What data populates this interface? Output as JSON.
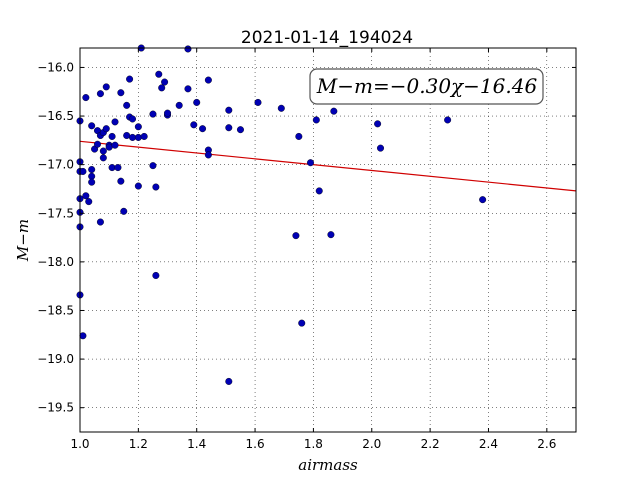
{
  "chart_data": {
    "type": "scatter",
    "title": "2021-01-14_194024",
    "xlabel": "airmass",
    "ylabel": "M−m",
    "xlim": [
      1.0,
      2.7
    ],
    "ylim": [
      -19.75,
      -15.8
    ],
    "y_inverted": true,
    "grid": true,
    "xticks": [
      "1.0",
      "1.2",
      "1.4",
      "1.6",
      "1.8",
      "2.0",
      "2.2",
      "2.4",
      "2.6"
    ],
    "xtick_values": [
      1.0,
      1.2,
      1.4,
      1.6,
      1.8,
      2.0,
      2.2,
      2.4,
      2.6
    ],
    "yticks": [
      "−16.0",
      "−16.5",
      "−17.0",
      "−17.5",
      "−18.0",
      "−18.5",
      "−19.0",
      "−19.5"
    ],
    "ytick_values": [
      -16.0,
      -16.5,
      -17.0,
      -17.5,
      -18.0,
      -18.5,
      -19.0,
      -19.5
    ],
    "annotation": "M−m=−0.30χ−16.46",
    "fit": {
      "slope": -0.3,
      "intercept": -16.46,
      "color": "#d00000"
    },
    "point_color": "#0000b4",
    "points": [
      [
        1.0,
        -16.55
      ],
      [
        1.0,
        -16.97
      ],
      [
        1.0,
        -17.07
      ],
      [
        1.0,
        -17.35
      ],
      [
        1.0,
        -17.49
      ],
      [
        1.0,
        -17.64
      ],
      [
        1.0,
        -18.34
      ],
      [
        1.01,
        -18.76
      ],
      [
        1.01,
        -17.07
      ],
      [
        1.02,
        -16.31
      ],
      [
        1.02,
        -17.32
      ],
      [
        1.03,
        -17.38
      ],
      [
        1.04,
        -17.05
      ],
      [
        1.04,
        -17.12
      ],
      [
        1.04,
        -17.18
      ],
      [
        1.04,
        -16.6
      ],
      [
        1.05,
        -16.84
      ],
      [
        1.06,
        -16.65
      ],
      [
        1.06,
        -16.79
      ],
      [
        1.07,
        -16.27
      ],
      [
        1.07,
        -17.59
      ],
      [
        1.07,
        -16.7
      ],
      [
        1.08,
        -16.67
      ],
      [
        1.08,
        -16.93
      ],
      [
        1.08,
        -16.86
      ],
      [
        1.09,
        -16.2
      ],
      [
        1.09,
        -16.63
      ],
      [
        1.1,
        -16.8
      ],
      [
        1.1,
        -16.82
      ],
      [
        1.11,
        -17.03
      ],
      [
        1.11,
        -16.71
      ],
      [
        1.12,
        -16.56
      ],
      [
        1.12,
        -16.8
      ],
      [
        1.13,
        -17.03
      ],
      [
        1.14,
        -17.17
      ],
      [
        1.14,
        -16.26
      ],
      [
        1.15,
        -17.48
      ],
      [
        1.16,
        -16.7
      ],
      [
        1.16,
        -16.39
      ],
      [
        1.17,
        -16.51
      ],
      [
        1.17,
        -16.12
      ],
      [
        1.18,
        -16.72
      ],
      [
        1.18,
        -16.53
      ],
      [
        1.2,
        -16.72
      ],
      [
        1.2,
        -16.61
      ],
      [
        1.2,
        -17.22
      ],
      [
        1.21,
        -15.8
      ],
      [
        1.22,
        -16.71
      ],
      [
        1.25,
        -17.01
      ],
      [
        1.25,
        -16.48
      ],
      [
        1.26,
        -17.23
      ],
      [
        1.26,
        -18.14
      ],
      [
        1.27,
        -16.07
      ],
      [
        1.28,
        -16.21
      ],
      [
        1.29,
        -16.15
      ],
      [
        1.3,
        -16.49
      ],
      [
        1.3,
        -16.47
      ],
      [
        1.34,
        -16.39
      ],
      [
        1.37,
        -16.22
      ],
      [
        1.37,
        -15.81
      ],
      [
        1.39,
        -16.59
      ],
      [
        1.4,
        -16.36
      ],
      [
        1.42,
        -16.63
      ],
      [
        1.44,
        -16.13
      ],
      [
        1.44,
        -16.85
      ],
      [
        1.44,
        -16.9
      ],
      [
        1.51,
        -16.44
      ],
      [
        1.51,
        -16.62
      ],
      [
        1.51,
        -19.23
      ],
      [
        1.55,
        -16.64
      ],
      [
        1.61,
        -16.36
      ],
      [
        1.69,
        -16.42
      ],
      [
        1.74,
        -17.73
      ],
      [
        1.75,
        -16.71
      ],
      [
        1.76,
        -18.63
      ],
      [
        1.79,
        -16.98
      ],
      [
        1.81,
        -16.54
      ],
      [
        1.82,
        -17.27
      ],
      [
        1.86,
        -17.72
      ],
      [
        1.87,
        -16.45
      ],
      [
        2.02,
        -16.58
      ],
      [
        2.03,
        -16.83
      ],
      [
        2.26,
        -16.54
      ],
      [
        2.38,
        -17.36
      ]
    ]
  }
}
